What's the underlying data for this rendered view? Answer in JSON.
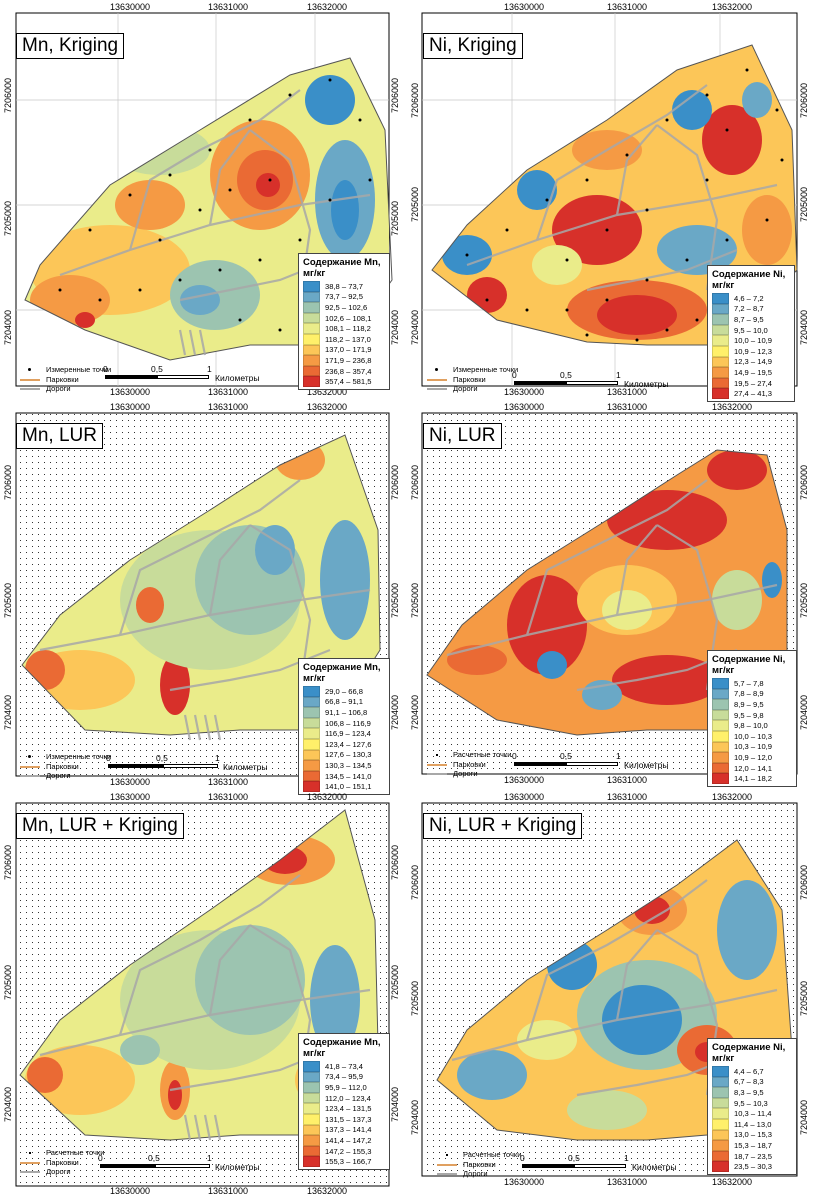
{
  "panels": [
    {
      "id": "mn-kriging",
      "title": "Mn, Kriging",
      "xticks": [
        "13630000",
        "13631000",
        "13632000"
      ],
      "yticks": [
        "7206000",
        "7205000",
        "7204000"
      ],
      "legend": {
        "title": "Содержание Mn, мг/кг",
        "classes": [
          {
            "range": "38,8 – 73,7",
            "color": "#3a8fc8"
          },
          {
            "range": "73,7 – 92,5",
            "color": "#6aa8c6"
          },
          {
            "range": "92,5 – 102,6",
            "color": "#9cc4b0"
          },
          {
            "range": "102,6 – 108,1",
            "color": "#c8dc9a"
          },
          {
            "range": "108,1 – 118,2",
            "color": "#eaec8a"
          },
          {
            "range": "118,2 – 137,0",
            "color": "#fff06a"
          },
          {
            "range": "137,0 – 171,9",
            "color": "#fcc658"
          },
          {
            "range": "171,9 – 236,8",
            "color": "#f59a44"
          },
          {
            "range": "236,8 – 357,4",
            "color": "#ea6a34"
          },
          {
            "range": "357,4 – 581,5",
            "color": "#d7302a"
          }
        ]
      },
      "key": {
        "points": "Измеренные точки",
        "parks": "Парковки",
        "roads": "Дороги"
      },
      "scale": {
        "labels": [
          "0",
          "0,5",
          "1"
        ],
        "unit": "Километры"
      }
    },
    {
      "id": "ni-kriging",
      "title": "Ni, Kriging",
      "xticks": [
        "13630000",
        "13631000",
        "13632000"
      ],
      "yticks": [
        "7206000",
        "7205000",
        "7204000"
      ],
      "legend": {
        "title": "Содержание Ni, мг/кг",
        "classes": [
          {
            "range": "4,6 – 7,2",
            "color": "#3a8fc8"
          },
          {
            "range": "7,2 – 8,7",
            "color": "#6aa8c6"
          },
          {
            "range": "8,7 – 9,5",
            "color": "#9cc4b0"
          },
          {
            "range": "9,5 – 10,0",
            "color": "#c8dc9a"
          },
          {
            "range": "10,0 – 10,9",
            "color": "#eaec8a"
          },
          {
            "range": "10,9 – 12,3",
            "color": "#fff06a"
          },
          {
            "range": "12,3 – 14,9",
            "color": "#fcc658"
          },
          {
            "range": "14,9 – 19,5",
            "color": "#f59a44"
          },
          {
            "range": "19,5 – 27,4",
            "color": "#ea6a34"
          },
          {
            "range": "27,4 – 41,3",
            "color": "#d7302a"
          }
        ]
      },
      "key": {
        "points": "Измеренные точки",
        "parks": "Парковки",
        "roads": "Дороги"
      },
      "scale": {
        "labels": [
          "0",
          "0,5",
          "1"
        ],
        "unit": "Километры"
      }
    },
    {
      "id": "mn-lur",
      "title": "Mn, LUR",
      "xticks": [
        "13630000",
        "13631000",
        "13632000"
      ],
      "yticks": [
        "7206000",
        "7205000",
        "7204000"
      ],
      "legend": {
        "title": "Содержание Mn, мг/кг",
        "classes": [
          {
            "range": "29,0 – 66,8",
            "color": "#3a8fc8"
          },
          {
            "range": "66,8 – 91,1",
            "color": "#6aa8c6"
          },
          {
            "range": "91,1 – 106,8",
            "color": "#9cc4b0"
          },
          {
            "range": "106,8 – 116,9",
            "color": "#c8dc9a"
          },
          {
            "range": "116,9 – 123,4",
            "color": "#eaec8a"
          },
          {
            "range": "123,4 – 127,6",
            "color": "#fff06a"
          },
          {
            "range": "127,6 – 130,3",
            "color": "#fcc658"
          },
          {
            "range": "130,3 – 134,5",
            "color": "#f59a44"
          },
          {
            "range": "134,5 – 141,0",
            "color": "#ea6a34"
          },
          {
            "range": "141,0 – 151,1",
            "color": "#d7302a"
          }
        ]
      },
      "key": {
        "points": "Измеренные точки",
        "parks": "Парковки",
        "roads": "Дороги"
      },
      "scale": {
        "labels": [
          "0",
          "0,5",
          "1"
        ],
        "unit": "Километры"
      }
    },
    {
      "id": "ni-lur",
      "title": "Ni, LUR",
      "xticks": [
        "13630000",
        "13631000",
        "13632000"
      ],
      "yticks": [
        "7206000",
        "7205000",
        "7204000"
      ],
      "legend": {
        "title": "Содержание Ni, мг/кг",
        "classes": [
          {
            "range": "5,7 – 7,8",
            "color": "#3a8fc8"
          },
          {
            "range": "7,8 – 8,9",
            "color": "#6aa8c6"
          },
          {
            "range": "8,9 – 9,5",
            "color": "#9cc4b0"
          },
          {
            "range": "9,5 – 9,8",
            "color": "#c8dc9a"
          },
          {
            "range": "9,8 – 10,0",
            "color": "#eaec8a"
          },
          {
            "range": "10,0 – 10,3",
            "color": "#fff06a"
          },
          {
            "range": "10,3 – 10,9",
            "color": "#fcc658"
          },
          {
            "range": "10,9 – 12,0",
            "color": "#f59a44"
          },
          {
            "range": "12,0 – 14,1",
            "color": "#ea6a34"
          },
          {
            "range": "14,1 – 18,2",
            "color": "#d7302a"
          }
        ]
      },
      "key": {
        "points": "Расчетные точки",
        "parks": "Парковки",
        "roads": "Дороги"
      },
      "scale": {
        "labels": [
          "0",
          "0,5",
          "1"
        ],
        "unit": "Километры"
      }
    },
    {
      "id": "mn-lur-kriging",
      "title": "Mn, LUR + Kriging",
      "xticks": [
        "13630000",
        "13631000",
        "13632000"
      ],
      "yticks": [
        "7206000",
        "7205000",
        "7204000"
      ],
      "legend": {
        "title": "Содержание Mn, мг/кг",
        "classes": [
          {
            "range": "41,8 – 73,4",
            "color": "#3a8fc8"
          },
          {
            "range": "73,4 – 95,9",
            "color": "#6aa8c6"
          },
          {
            "range": "95,9 – 112,0",
            "color": "#9cc4b0"
          },
          {
            "range": "112,0 – 123,4",
            "color": "#c8dc9a"
          },
          {
            "range": "123,4 – 131,5",
            "color": "#eaec8a"
          },
          {
            "range": "131,5 – 137,3",
            "color": "#fff06a"
          },
          {
            "range": "137,3 – 141,4",
            "color": "#fcc658"
          },
          {
            "range": "141,4 – 147,2",
            "color": "#f59a44"
          },
          {
            "range": "147,2 – 155,3",
            "color": "#ea6a34"
          },
          {
            "range": "155,3 – 166,7",
            "color": "#d7302a"
          }
        ]
      },
      "key": {
        "points": "Расчетные точки",
        "parks": "Парковки",
        "roads": "Дороги"
      },
      "scale": {
        "labels": [
          "0",
          "0,5",
          "1"
        ],
        "unit": "Километры"
      }
    },
    {
      "id": "ni-lur-kriging",
      "title": "Ni, LUR + Kriging",
      "xticks": [
        "13630000",
        "13631000",
        "13632000"
      ],
      "yticks": [
        "7206000",
        "7205000",
        "7204000"
      ],
      "legend": {
        "title": "Содержание Ni, мг/кг",
        "classes": [
          {
            "range": "4,4 – 6,7",
            "color": "#3a8fc8"
          },
          {
            "range": "6,7 – 8,3",
            "color": "#6aa8c6"
          },
          {
            "range": "8,3 – 9,5",
            "color": "#9cc4b0"
          },
          {
            "range": "9,5 – 10,3",
            "color": "#c8dc9a"
          },
          {
            "range": "10,3 – 11,4",
            "color": "#eaec8a"
          },
          {
            "range": "11,4 – 13,0",
            "color": "#fff06a"
          },
          {
            "range": "13,0 – 15,3",
            "color": "#fcc658"
          },
          {
            "range": "15,3 – 18,7",
            "color": "#f59a44"
          },
          {
            "range": "18,7 – 23,5",
            "color": "#ea6a34"
          },
          {
            "range": "23,5 – 30,3",
            "color": "#d7302a"
          }
        ]
      },
      "key": {
        "points": "Расчетные точки",
        "parks": "Парковки",
        "roads": "Дороги"
      },
      "scale": {
        "labels": [
          "0",
          "0,5",
          "1"
        ],
        "unit": "Километры"
      }
    }
  ]
}
